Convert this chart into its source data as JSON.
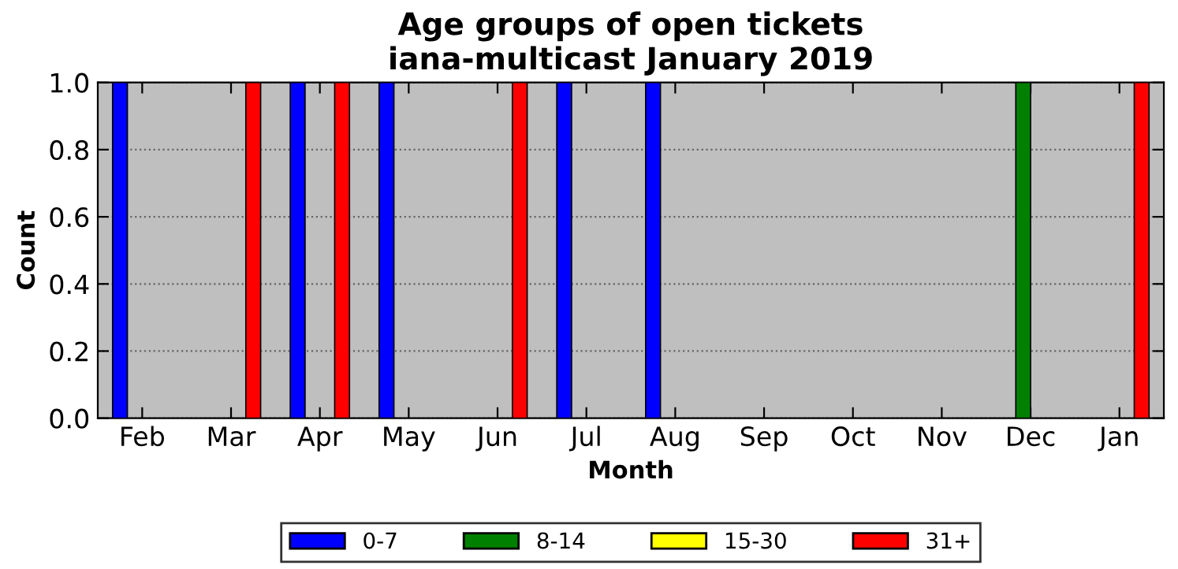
{
  "chart_data": {
    "type": "bar",
    "title": "Age groups of open tickets\niana-multicast January 2019",
    "xlabel": "Month",
    "ylabel": "Count",
    "categories": [
      "Feb",
      "Mar",
      "Apr",
      "May",
      "Jun",
      "Jul",
      "Aug",
      "Sep",
      "Oct",
      "Nov",
      "Dec",
      "Jan"
    ],
    "series": [
      {
        "name": "0-7",
        "color": "#0000ff",
        "values": [
          1,
          0,
          1,
          1,
          0,
          1,
          1,
          0,
          0,
          0,
          0,
          0
        ]
      },
      {
        "name": "8-14",
        "color": "#008000",
        "values": [
          0,
          0,
          0,
          0,
          0,
          0,
          0,
          0,
          0,
          0,
          1,
          0
        ]
      },
      {
        "name": "15-30",
        "color": "#ffff00",
        "values": [
          0,
          0,
          0,
          0,
          0,
          0,
          0,
          0,
          0,
          0,
          0,
          0
        ]
      },
      {
        "name": "31+",
        "color": "#ff0000",
        "values": [
          0,
          1,
          1,
          0,
          1,
          0,
          0,
          0,
          0,
          0,
          0,
          1
        ]
      }
    ],
    "ylim": [
      0,
      1
    ],
    "yticks": [
      {
        "value": 0,
        "label": "0.0"
      },
      {
        "value": 0.2,
        "label": "0.2"
      },
      {
        "value": 0.4,
        "label": "0.4"
      },
      {
        "value": 0.6,
        "label": "0.6"
      },
      {
        "value": 0.8,
        "label": "0.8"
      },
      {
        "value": 1,
        "label": "1.0"
      }
    ],
    "grid": "y",
    "legend": "bottom"
  }
}
